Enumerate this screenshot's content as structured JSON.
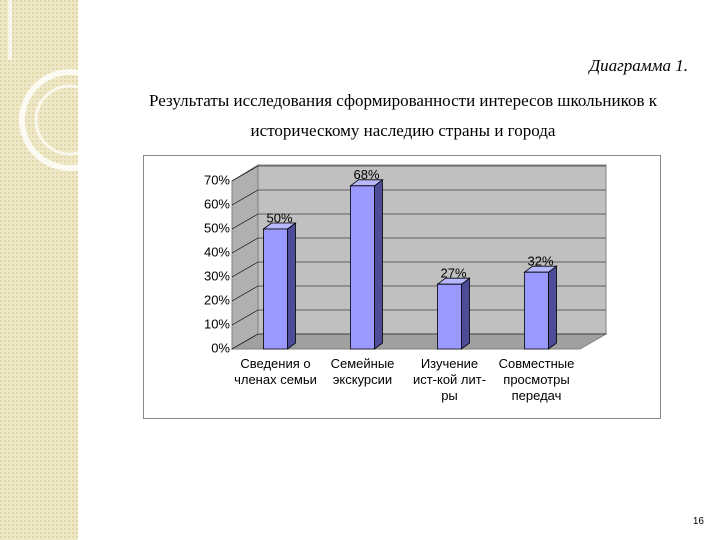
{
  "chart_data": {
    "type": "bar3d",
    "title": "Диаграмма 1.",
    "subtitle": "Результаты исследования сформированности интересов школьников к историческому наследию страны и города",
    "categories": [
      "Сведения о членах семьи",
      "Семейные экскурсии",
      "Изучение ист-кой лит-ры",
      "Совместные просмотры передач"
    ],
    "values": [
      50,
      68,
      27,
      32
    ],
    "value_labels": [
      "50%",
      "68%",
      "27%",
      "32%"
    ],
    "color": "#9999ff",
    "ylim": [
      0,
      70
    ],
    "yticks": [
      {
        "value": 0,
        "label": "0%"
      },
      {
        "value": 10,
        "label": "10%"
      },
      {
        "value": 20,
        "label": "20%"
      },
      {
        "value": 30,
        "label": "30%"
      },
      {
        "value": 40,
        "label": "40%"
      },
      {
        "value": 50,
        "label": "50%"
      },
      {
        "value": 60,
        "label": "60%"
      },
      {
        "value": 70,
        "label": "70%"
      }
    ],
    "grid": true
  },
  "page_number": "16"
}
